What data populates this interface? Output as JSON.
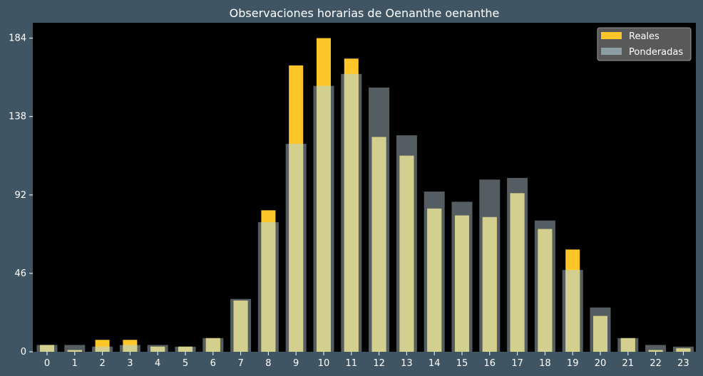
{
  "chart_data": {
    "type": "bar",
    "title": "Observaciones horarias de Oenanthe oenanthe",
    "xlabel": "",
    "ylabel": "",
    "categories": [
      "0",
      "1",
      "2",
      "3",
      "4",
      "5",
      "6",
      "7",
      "8",
      "9",
      "10",
      "11",
      "12",
      "13",
      "14",
      "15",
      "16",
      "17",
      "18",
      "19",
      "20",
      "21",
      "22",
      "23"
    ],
    "ylim": [
      0,
      193
    ],
    "yticks": [
      0,
      46,
      92,
      138,
      184
    ],
    "series": [
      {
        "name": "Reales",
        "color": "#ffc62a",
        "values": [
          4,
          1,
          7,
          7,
          3,
          3,
          8,
          30,
          83,
          168,
          184,
          172,
          126,
          115,
          84,
          80,
          79,
          93,
          72,
          60,
          21,
          8,
          1,
          2
        ]
      },
      {
        "name": "Ponderadas",
        "color": "#8c9da3",
        "values": [
          4,
          4,
          3,
          4,
          4,
          3,
          8,
          31,
          76,
          122,
          156,
          163,
          155,
          127,
          94,
          88,
          101,
          102,
          77,
          48,
          26,
          8,
          4,
          3
        ]
      }
    ],
    "overlap_color": "#d3cf8e",
    "legend_position": "top-right"
  }
}
